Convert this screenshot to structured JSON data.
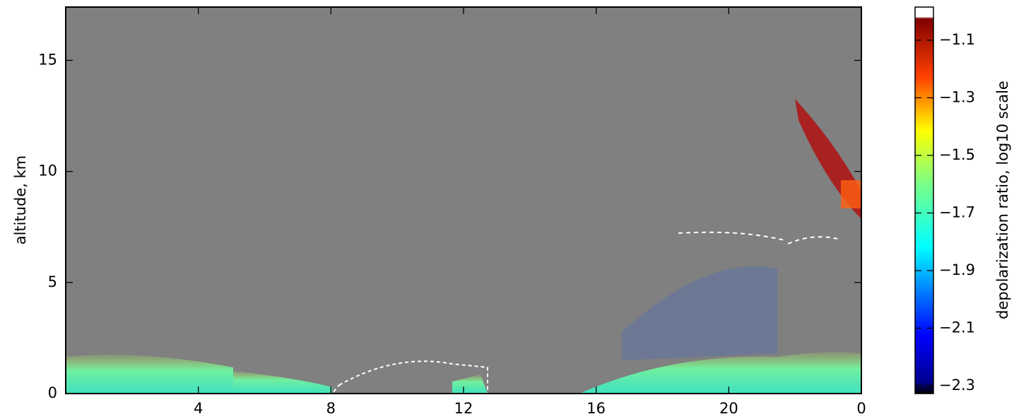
{
  "chart_data": {
    "type": "heatmap",
    "ylabel": "altitude, km",
    "xlim": [
      0,
      24
    ],
    "xticks": [
      4,
      8,
      12,
      16,
      20,
      {
        "value": 24,
        "label": "0"
      }
    ],
    "ylim": [
      0,
      17.4
    ],
    "yticks": [
      0,
      5,
      10,
      15
    ],
    "colorbar": {
      "label": "depolarization ratio, log10 scale",
      "lim": [
        -2.327,
        -0.985
      ],
      "ticks": [
        {
          "value": -1.1,
          "label": "−1.1"
        },
        {
          "value": -1.3,
          "label": "−1.3"
        },
        {
          "value": -1.5,
          "label": "−1.5"
        },
        {
          "value": -1.7,
          "label": "−1.7"
        },
        {
          "value": -1.9,
          "label": "−1.9"
        },
        {
          "value": -2.1,
          "label": "−2.1"
        },
        {
          "value": -2.3,
          "label": "−2.3"
        }
      ]
    }
  }
}
